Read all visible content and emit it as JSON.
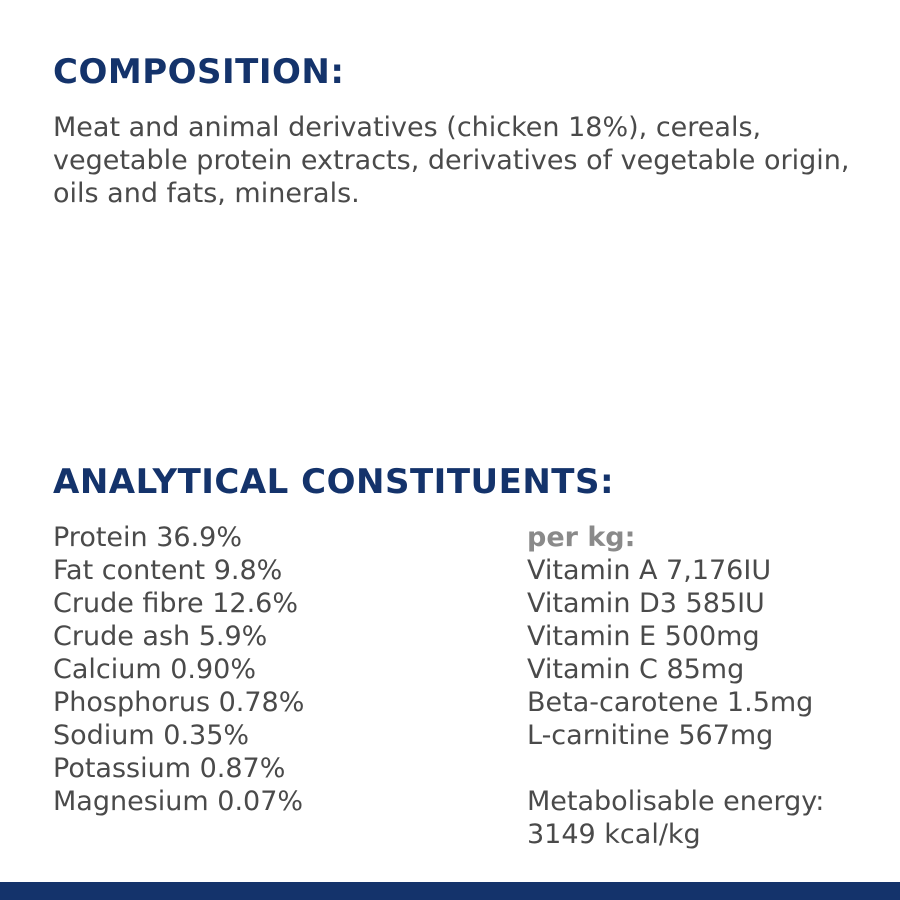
{
  "composition": {
    "heading": "COMPOSITION:",
    "text": "Meat and animal derivatives (chicken 18%), cereals, vegetable protein extracts, derivatives of vegetable origin, oils and fats, minerals."
  },
  "analytical": {
    "heading": "ANALYTICAL CONSTITUENTS:",
    "left": [
      "Protein 36.9%",
      "Fat content 9.8%",
      "Crude fibre 12.6%",
      "Crude ash 5.9%",
      "Calcium 0.90%",
      "Phosphorus 0.78%",
      "Sodium 0.35%",
      "Potassium 0.87%",
      "Magnesium 0.07%"
    ],
    "right_label": "per kg:",
    "right": [
      "Vitamin A 7,176IU",
      "Vitamin D3 585IU",
      "Vitamin E 500mg",
      "Vitamin C 85mg",
      "Beta-carotene 1.5mg",
      "L-carnitine 567mg"
    ],
    "energy_label": "Metabolisable energy:",
    "energy_value": "3149 kcal/kg"
  },
  "colors": {
    "heading": "#14336b",
    "body_text": "#4a4a4a",
    "per_kg": "#8a8a8a",
    "footer_bar": "#14336b"
  }
}
